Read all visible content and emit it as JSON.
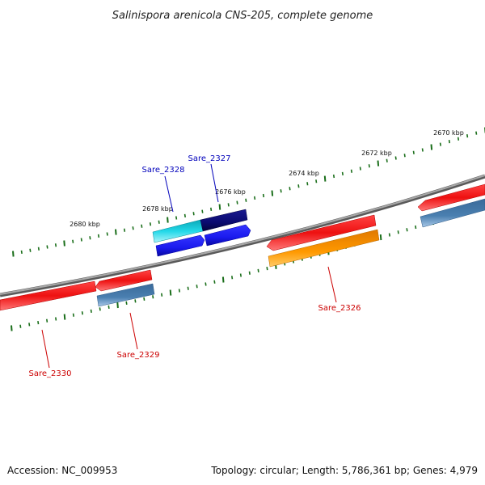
{
  "title": "Salinispora arenicola CNS-205, complete genome",
  "footer": {
    "accession": "Accession: NC_009953",
    "summary": "Topology: circular; Length: 5,786,361 bp; Genes: 4,979"
  },
  "colors": {
    "backbone": "#8a8a8a",
    "tick_major": "#1a6e1a",
    "tick_minor": "#2a8a2a",
    "label_red": "#cc0000",
    "label_blue": "#0000bb",
    "red": "#ee1111",
    "steelblue": "#4a7fb0",
    "orange": "#ff9900",
    "cyan": "#22d8e8",
    "blue": "#1a1aee",
    "navy": "#0a0a70"
  },
  "kbp_labels": [
    "2680 kbp",
    "2678 kbp",
    "2676 kbp",
    "2674 kbp",
    "2672 kbp",
    "2670 kbp"
  ],
  "genes": [
    {
      "name": "Sare_2330",
      "label_color": "red"
    },
    {
      "name": "Sare_2329",
      "label_color": "red"
    },
    {
      "name": "Sare_2328",
      "label_color": "blue"
    },
    {
      "name": "Sare_2327",
      "label_color": "blue"
    },
    {
      "name": "Sare_2326",
      "label_color": "red"
    }
  ]
}
